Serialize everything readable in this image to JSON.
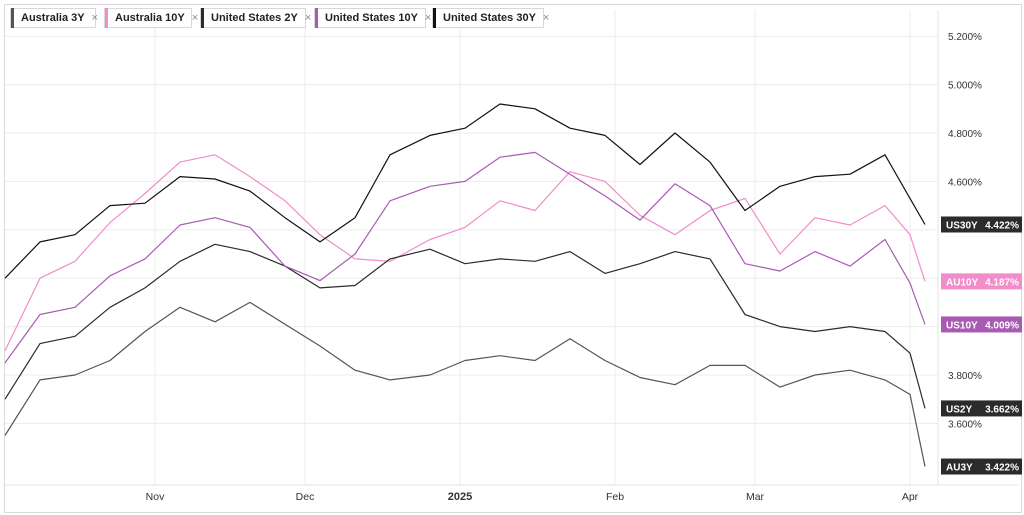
{
  "chart_data": {
    "type": "line",
    "y_unit": "%",
    "ylim": [
      3.42,
      5.3
    ],
    "yticks": [
      "5.200%",
      "5.000%",
      "4.800%",
      "4.600%",
      "3.800%",
      "3.600%"
    ],
    "yticks_values": [
      5.2,
      5.0,
      4.8,
      4.6,
      3.8,
      3.6
    ],
    "xticks": [
      {
        "label": "Nov",
        "date": "2024-11-01",
        "bold": false
      },
      {
        "label": "Dec",
        "date": "2024-12-01",
        "bold": false
      },
      {
        "label": "2025",
        "date": "2025-01-01",
        "bold": true
      },
      {
        "label": "Feb",
        "date": "2025-02-01",
        "bold": false
      },
      {
        "label": "Mar",
        "date": "2025-03-01",
        "bold": false
      },
      {
        "label": "Apr",
        "date": "2025-04-01",
        "bold": false
      }
    ],
    "x_range": [
      "2024-10-02",
      "2025-04-04"
    ],
    "grid": true,
    "legend_position": "top-left",
    "series": [
      {
        "name": "Australia 3Y",
        "tag": "AU3Y",
        "last_label": "3.422%",
        "color": "#555555",
        "points": [
          [
            "2024-10-02",
            3.55
          ],
          [
            "2024-10-09",
            3.78
          ],
          [
            "2024-10-16",
            3.8
          ],
          [
            "2024-10-23",
            3.86
          ],
          [
            "2024-10-30",
            3.98
          ],
          [
            "2024-11-06",
            4.08
          ],
          [
            "2024-11-13",
            4.02
          ],
          [
            "2024-11-20",
            4.1
          ],
          [
            "2024-11-27",
            4.01
          ],
          [
            "2024-12-04",
            3.92
          ],
          [
            "2024-12-11",
            3.82
          ],
          [
            "2024-12-18",
            3.78
          ],
          [
            "2024-12-26",
            3.8
          ],
          [
            "2025-01-02",
            3.86
          ],
          [
            "2025-01-09",
            3.88
          ],
          [
            "2025-01-16",
            3.86
          ],
          [
            "2025-01-23",
            3.95
          ],
          [
            "2025-01-30",
            3.86
          ],
          [
            "2025-02-06",
            3.79
          ],
          [
            "2025-02-13",
            3.76
          ],
          [
            "2025-02-20",
            3.84
          ],
          [
            "2025-02-27",
            3.84
          ],
          [
            "2025-03-06",
            3.75
          ],
          [
            "2025-03-13",
            3.8
          ],
          [
            "2025-03-20",
            3.82
          ],
          [
            "2025-03-27",
            3.78
          ],
          [
            "2025-04-01",
            3.72
          ],
          [
            "2025-04-04",
            3.422
          ]
        ]
      },
      {
        "name": "Australia 10Y",
        "tag": "AU10Y",
        "last_label": "4.187%",
        "color": "#f38ccb",
        "points": [
          [
            "2024-10-02",
            3.9
          ],
          [
            "2024-10-09",
            4.2
          ],
          [
            "2024-10-16",
            4.27
          ],
          [
            "2024-10-23",
            4.43
          ],
          [
            "2024-10-30",
            4.55
          ],
          [
            "2024-11-06",
            4.68
          ],
          [
            "2024-11-13",
            4.71
          ],
          [
            "2024-11-20",
            4.62
          ],
          [
            "2024-11-27",
            4.52
          ],
          [
            "2024-12-04",
            4.38
          ],
          [
            "2024-12-11",
            4.28
          ],
          [
            "2024-12-18",
            4.27
          ],
          [
            "2024-12-26",
            4.36
          ],
          [
            "2025-01-02",
            4.41
          ],
          [
            "2025-01-09",
            4.52
          ],
          [
            "2025-01-16",
            4.48
          ],
          [
            "2025-01-23",
            4.64
          ],
          [
            "2025-01-30",
            4.6
          ],
          [
            "2025-02-06",
            4.46
          ],
          [
            "2025-02-13",
            4.38
          ],
          [
            "2025-02-20",
            4.48
          ],
          [
            "2025-02-27",
            4.53
          ],
          [
            "2025-03-06",
            4.3
          ],
          [
            "2025-03-13",
            4.45
          ],
          [
            "2025-03-20",
            4.42
          ],
          [
            "2025-03-27",
            4.5
          ],
          [
            "2025-04-01",
            4.38
          ],
          [
            "2025-04-04",
            4.187
          ]
        ]
      },
      {
        "name": "United States 2Y",
        "tag": "US2Y",
        "last_label": "3.662%",
        "color": "#2b2b2b",
        "points": [
          [
            "2024-10-02",
            3.7
          ],
          [
            "2024-10-09",
            3.93
          ],
          [
            "2024-10-16",
            3.96
          ],
          [
            "2024-10-23",
            4.08
          ],
          [
            "2024-10-30",
            4.16
          ],
          [
            "2024-11-06",
            4.27
          ],
          [
            "2024-11-13",
            4.34
          ],
          [
            "2024-11-20",
            4.31
          ],
          [
            "2024-11-27",
            4.25
          ],
          [
            "2024-12-04",
            4.16
          ],
          [
            "2024-12-11",
            4.17
          ],
          [
            "2024-12-18",
            4.28
          ],
          [
            "2024-12-26",
            4.32
          ],
          [
            "2025-01-02",
            4.26
          ],
          [
            "2025-01-09",
            4.28
          ],
          [
            "2025-01-16",
            4.27
          ],
          [
            "2025-01-23",
            4.31
          ],
          [
            "2025-01-30",
            4.22
          ],
          [
            "2025-02-06",
            4.26
          ],
          [
            "2025-02-13",
            4.31
          ],
          [
            "2025-02-20",
            4.28
          ],
          [
            "2025-02-27",
            4.05
          ],
          [
            "2025-03-06",
            4.0
          ],
          [
            "2025-03-13",
            3.98
          ],
          [
            "2025-03-20",
            4.0
          ],
          [
            "2025-03-27",
            3.98
          ],
          [
            "2025-04-01",
            3.89
          ],
          [
            "2025-04-04",
            3.662
          ]
        ]
      },
      {
        "name": "United States 10Y",
        "tag": "US10Y",
        "last_label": "4.009%",
        "color": "#a85bb3",
        "points": [
          [
            "2024-10-02",
            3.85
          ],
          [
            "2024-10-09",
            4.05
          ],
          [
            "2024-10-16",
            4.08
          ],
          [
            "2024-10-23",
            4.21
          ],
          [
            "2024-10-30",
            4.28
          ],
          [
            "2024-11-06",
            4.42
          ],
          [
            "2024-11-13",
            4.45
          ],
          [
            "2024-11-20",
            4.41
          ],
          [
            "2024-11-27",
            4.25
          ],
          [
            "2024-12-04",
            4.19
          ],
          [
            "2024-12-11",
            4.3
          ],
          [
            "2024-12-18",
            4.52
          ],
          [
            "2024-12-26",
            4.58
          ],
          [
            "2025-01-02",
            4.6
          ],
          [
            "2025-01-09",
            4.7
          ],
          [
            "2025-01-16",
            4.72
          ],
          [
            "2025-01-23",
            4.63
          ],
          [
            "2025-01-30",
            4.54
          ],
          [
            "2025-02-06",
            4.44
          ],
          [
            "2025-02-13",
            4.59
          ],
          [
            "2025-02-20",
            4.5
          ],
          [
            "2025-02-27",
            4.26
          ],
          [
            "2025-03-06",
            4.23
          ],
          [
            "2025-03-13",
            4.31
          ],
          [
            "2025-03-20",
            4.25
          ],
          [
            "2025-03-27",
            4.36
          ],
          [
            "2025-04-01",
            4.18
          ],
          [
            "2025-04-04",
            4.009
          ]
        ]
      },
      {
        "name": "United States 30Y",
        "tag": "US30Y",
        "last_label": "4.422%",
        "color": "#111111",
        "points": [
          [
            "2024-10-02",
            4.2
          ],
          [
            "2024-10-09",
            4.35
          ],
          [
            "2024-10-16",
            4.38
          ],
          [
            "2024-10-23",
            4.5
          ],
          [
            "2024-10-30",
            4.51
          ],
          [
            "2024-11-06",
            4.62
          ],
          [
            "2024-11-13",
            4.61
          ],
          [
            "2024-11-20",
            4.56
          ],
          [
            "2024-11-27",
            4.45
          ],
          [
            "2024-12-04",
            4.35
          ],
          [
            "2024-12-11",
            4.45
          ],
          [
            "2024-12-18",
            4.71
          ],
          [
            "2024-12-26",
            4.79
          ],
          [
            "2025-01-02",
            4.82
          ],
          [
            "2025-01-09",
            4.92
          ],
          [
            "2025-01-16",
            4.9
          ],
          [
            "2025-01-23",
            4.82
          ],
          [
            "2025-01-30",
            4.79
          ],
          [
            "2025-02-06",
            4.67
          ],
          [
            "2025-02-13",
            4.8
          ],
          [
            "2025-02-20",
            4.68
          ],
          [
            "2025-02-27",
            4.48
          ],
          [
            "2025-03-06",
            4.58
          ],
          [
            "2025-03-13",
            4.62
          ],
          [
            "2025-03-20",
            4.63
          ],
          [
            "2025-03-27",
            4.71
          ],
          [
            "2025-04-01",
            4.53
          ],
          [
            "2025-04-04",
            4.422
          ]
        ]
      }
    ]
  }
}
